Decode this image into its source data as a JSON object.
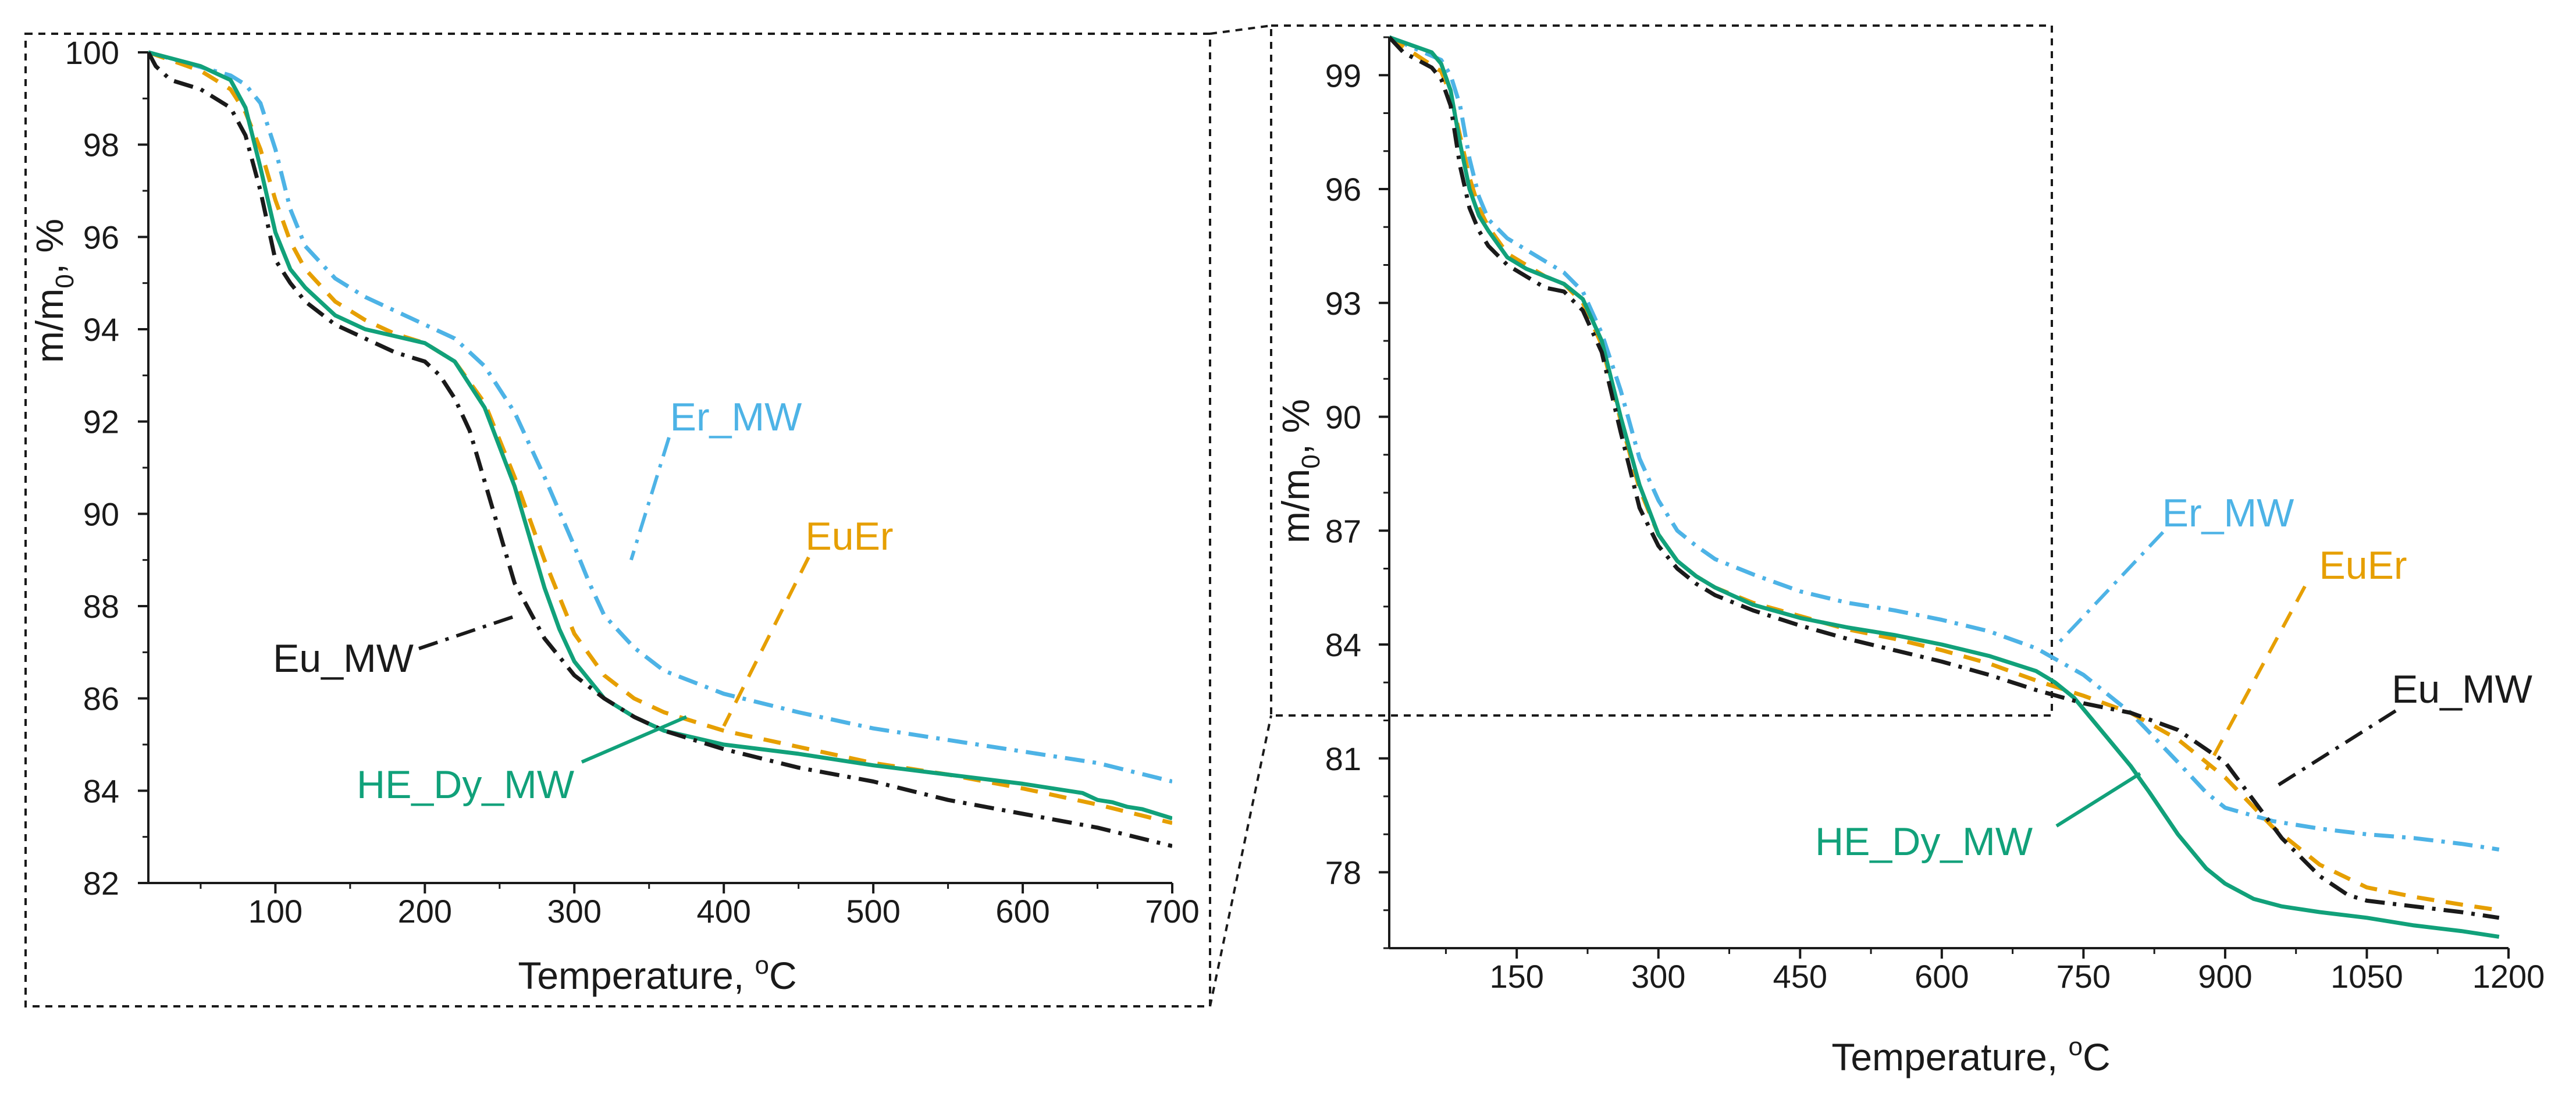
{
  "figure": {
    "description_free": true
  },
  "colors": {
    "Eu_MW": "#1a1a1a",
    "Er_MW": "#4db3e6",
    "EuEr": "#e69f00",
    "HE_Dy_MW": "#11a17a",
    "axis": "#1a1a1a",
    "frame": "#1a1a1a"
  },
  "chart_data": [
    {
      "type": "line",
      "panel": "left",
      "xlabel": "Temperature, °C",
      "xlabel_main": "Temperature, ",
      "xlabel_sup": "o",
      "xlabel_unit": "C",
      "ylabel_main": "m/m",
      "ylabel_sub": "0",
      "ylabel_unit": ", %",
      "xlim": [
        15,
        700
      ],
      "ylim": [
        82,
        100
      ],
      "xticks": [
        100,
        200,
        300,
        400,
        500,
        600,
        700
      ],
      "yticks": [
        82,
        84,
        86,
        88,
        90,
        92,
        94,
        96,
        98,
        100
      ],
      "legend": "annotations",
      "series": [
        {
          "name": "Er_MW",
          "style": "dash-dot",
          "x": [
            15,
            70,
            80,
            90,
            100,
            110,
            120,
            140,
            160,
            180,
            200,
            220,
            240,
            260,
            280,
            300,
            310,
            320,
            340,
            360,
            400,
            450,
            500,
            550,
            600,
            650,
            700
          ],
          "y": [
            100,
            99.5,
            99.3,
            98.9,
            97.9,
            96.6,
            95.8,
            95.1,
            94.7,
            94.4,
            94.1,
            93.8,
            93.2,
            92.2,
            90.8,
            89.3,
            88.5,
            87.8,
            87.1,
            86.6,
            86.1,
            85.7,
            85.35,
            85.1,
            84.85,
            84.6,
            84.2
          ]
        },
        {
          "name": "EuEr",
          "style": "dashed",
          "x": [
            15,
            50,
            70,
            80,
            90,
            100,
            110,
            120,
            140,
            160,
            180,
            200,
            220,
            240,
            260,
            280,
            300,
            320,
            340,
            360,
            400,
            450,
            500,
            550,
            600,
            650,
            700
          ],
          "y": [
            100,
            99.6,
            99.2,
            98.7,
            97.9,
            96.8,
            95.9,
            95.3,
            94.6,
            94.2,
            93.9,
            93.7,
            93.3,
            92.4,
            90.8,
            89.0,
            87.4,
            86.5,
            86.0,
            85.7,
            85.3,
            84.95,
            84.6,
            84.35,
            84.05,
            83.7,
            83.3
          ]
        },
        {
          "name": "HE_Dy_MW",
          "style": "solid",
          "x": [
            15,
            50,
            70,
            80,
            90,
            100,
            110,
            120,
            140,
            160,
            180,
            200,
            220,
            240,
            260,
            270,
            280,
            290,
            300,
            320,
            340,
            360,
            400,
            450,
            500,
            550,
            600,
            640,
            650,
            660,
            670,
            680,
            690,
            700
          ],
          "y": [
            100,
            99.7,
            99.4,
            98.8,
            97.5,
            96.1,
            95.3,
            94.9,
            94.3,
            94.0,
            93.85,
            93.7,
            93.3,
            92.3,
            90.6,
            89.5,
            88.4,
            87.5,
            86.8,
            86.0,
            85.6,
            85.3,
            85.0,
            84.8,
            84.55,
            84.35,
            84.15,
            83.95,
            83.8,
            83.75,
            83.65,
            83.6,
            83.5,
            83.4
          ]
        },
        {
          "name": "Eu_MW",
          "style": "dash-dot",
          "x": [
            15,
            20,
            30,
            50,
            60,
            70,
            80,
            90,
            100,
            110,
            120,
            140,
            160,
            180,
            200,
            210,
            220,
            230,
            240,
            260,
            280,
            300,
            320,
            340,
            360,
            400,
            450,
            500,
            550,
            600,
            650,
            700
          ],
          "y": [
            100,
            99.7,
            99.4,
            99.2,
            99.0,
            98.8,
            98.2,
            97.0,
            95.5,
            95.0,
            94.6,
            94.1,
            93.8,
            93.5,
            93.3,
            93.0,
            92.5,
            91.8,
            90.7,
            88.5,
            87.3,
            86.5,
            86.0,
            85.6,
            85.3,
            84.9,
            84.5,
            84.2,
            83.8,
            83.5,
            83.2,
            82.8
          ]
        }
      ],
      "annotations": [
        {
          "series": "Er_MW",
          "text": "Er_MW"
        },
        {
          "series": "EuEr",
          "text": "EuEr"
        },
        {
          "series": "Eu_MW",
          "text": "Eu_MW"
        },
        {
          "series": "HE_Dy_MW",
          "text": "HE_Dy_MW"
        }
      ]
    },
    {
      "type": "line",
      "panel": "right",
      "xlabel": "Temperature, °C",
      "xlabel_main": "Temperature, ",
      "xlabel_sup": "o",
      "xlabel_unit": "C",
      "ylabel_main": "m/m",
      "ylabel_sub": "0",
      "ylabel_unit": ", %",
      "xlim": [
        15,
        1200
      ],
      "ylim": [
        76,
        100
      ],
      "xticks": [
        150,
        300,
        450,
        600,
        750,
        900,
        1050,
        1200
      ],
      "yticks": [
        78,
        81,
        84,
        87,
        90,
        93,
        96,
        99
      ],
      "legend": "annotations",
      "series": [
        {
          "name": "Er_MW",
          "style": "dash-dot",
          "x": [
            15,
            70,
            80,
            90,
            100,
            110,
            120,
            140,
            160,
            180,
            200,
            220,
            240,
            260,
            280,
            300,
            320,
            340,
            360,
            400,
            450,
            500,
            550,
            600,
            650,
            700,
            750,
            800,
            850,
            880,
            900,
            950,
            1000,
            1050,
            1100,
            1150,
            1190
          ],
          "y": [
            100,
            99.4,
            99.0,
            98.2,
            96.8,
            95.8,
            95.2,
            94.7,
            94.4,
            94.1,
            93.8,
            93.3,
            92.2,
            90.7,
            88.9,
            87.8,
            87.0,
            86.6,
            86.25,
            85.85,
            85.4,
            85.1,
            84.9,
            84.65,
            84.35,
            83.9,
            83.2,
            82.2,
            80.9,
            80.1,
            79.7,
            79.35,
            79.15,
            79.0,
            78.9,
            78.75,
            78.6
          ]
        },
        {
          "name": "EuEr",
          "style": "dashed",
          "x": [
            15,
            70,
            80,
            90,
            100,
            110,
            120,
            140,
            160,
            180,
            200,
            220,
            240,
            260,
            280,
            300,
            320,
            340,
            360,
            400,
            450,
            500,
            550,
            600,
            650,
            700,
            750,
            800,
            850,
            900,
            950,
            1000,
            1050,
            1100,
            1150,
            1190
          ],
          "y": [
            100,
            99.1,
            98.5,
            97.4,
            96.3,
            95.5,
            95.0,
            94.3,
            94.0,
            93.7,
            93.5,
            93.0,
            91.9,
            89.9,
            88.1,
            86.9,
            86.2,
            85.8,
            85.5,
            85.1,
            84.75,
            84.4,
            84.15,
            83.85,
            83.5,
            83.05,
            82.65,
            82.2,
            81.5,
            80.5,
            79.2,
            78.2,
            77.6,
            77.35,
            77.15,
            77.0
          ]
        },
        {
          "name": "HE_Dy_MW",
          "style": "solid",
          "x": [
            15,
            60,
            70,
            80,
            90,
            100,
            110,
            120,
            140,
            160,
            180,
            200,
            220,
            240,
            260,
            280,
            300,
            320,
            340,
            360,
            400,
            450,
            500,
            550,
            600,
            650,
            700,
            720,
            740,
            760,
            780,
            800,
            820,
            850,
            880,
            900,
            930,
            960,
            1000,
            1050,
            1100,
            1150,
            1190
          ],
          "y": [
            100,
            99.6,
            99.3,
            98.6,
            97.2,
            96.0,
            95.3,
            94.9,
            94.2,
            93.9,
            93.7,
            93.5,
            93.1,
            92.0,
            90.0,
            88.2,
            86.9,
            86.2,
            85.8,
            85.5,
            85.05,
            84.7,
            84.45,
            84.25,
            84.0,
            83.7,
            83.3,
            83.0,
            82.6,
            82.0,
            81.4,
            80.8,
            80.1,
            79.0,
            78.1,
            77.7,
            77.3,
            77.1,
            76.95,
            76.8,
            76.6,
            76.45,
            76.3
          ]
        },
        {
          "name": "Eu_MW",
          "style": "dash-dot",
          "x": [
            15,
            30,
            60,
            70,
            80,
            90,
            100,
            110,
            120,
            140,
            160,
            180,
            200,
            220,
            240,
            260,
            280,
            300,
            320,
            340,
            360,
            400,
            450,
            500,
            550,
            600,
            650,
            700,
            750,
            800,
            850,
            900,
            930,
            960,
            1000,
            1030,
            1050,
            1100,
            1150,
            1190
          ],
          "y": [
            100,
            99.6,
            99.2,
            98.9,
            98.2,
            96.6,
            95.5,
            94.9,
            94.5,
            94.0,
            93.7,
            93.4,
            93.3,
            92.8,
            91.7,
            89.6,
            87.6,
            86.6,
            86.0,
            85.6,
            85.3,
            84.9,
            84.5,
            84.15,
            83.85,
            83.55,
            83.2,
            82.8,
            82.45,
            82.2,
            81.75,
            80.9,
            79.9,
            78.9,
            77.9,
            77.4,
            77.25,
            77.1,
            76.95,
            76.8
          ]
        }
      ],
      "annotations": [
        {
          "series": "Er_MW",
          "text": "Er_MW"
        },
        {
          "series": "EuEr",
          "text": "EuEr"
        },
        {
          "series": "Eu_MW",
          "text": "Eu_MW"
        },
        {
          "series": "HE_Dy_MW",
          "text": "HE_Dy_MW"
        }
      ]
    }
  ]
}
